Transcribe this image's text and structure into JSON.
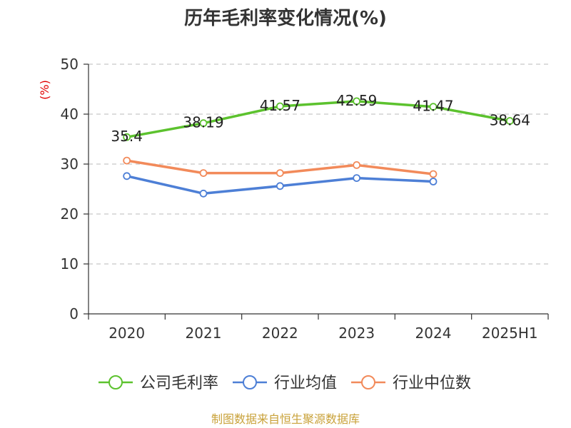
{
  "chart_data": {
    "type": "line",
    "title": "历年毛利率变化情况(%)",
    "ylabel": "(%)",
    "xlabel": "",
    "categories": [
      "2020",
      "2021",
      "2022",
      "2023",
      "2024",
      "2025H1"
    ],
    "ylim": [
      0,
      50
    ],
    "yticks": [
      0,
      10,
      20,
      30,
      40,
      50
    ],
    "grid": "horizontal-dashed",
    "legend_position": "bottom",
    "series": [
      {
        "name": "公司毛利率",
        "color": "#5cc22e",
        "values": [
          35.4,
          38.19,
          41.57,
          42.59,
          41.47,
          38.64
        ],
        "labels": [
          "35.4",
          "38.19",
          "41.57",
          "42.59",
          "41.47",
          "38.64"
        ]
      },
      {
        "name": "行业均值",
        "color": "#4d7fd6",
        "values": [
          27.6,
          24.1,
          25.6,
          27.2,
          26.5,
          null
        ]
      },
      {
        "name": "行业中位数",
        "color": "#f28a5a",
        "values": [
          30.7,
          28.2,
          28.2,
          29.8,
          28.0,
          null
        ]
      }
    ]
  },
  "footer": {
    "source": "制图数据来自恒生聚源数据库"
  }
}
